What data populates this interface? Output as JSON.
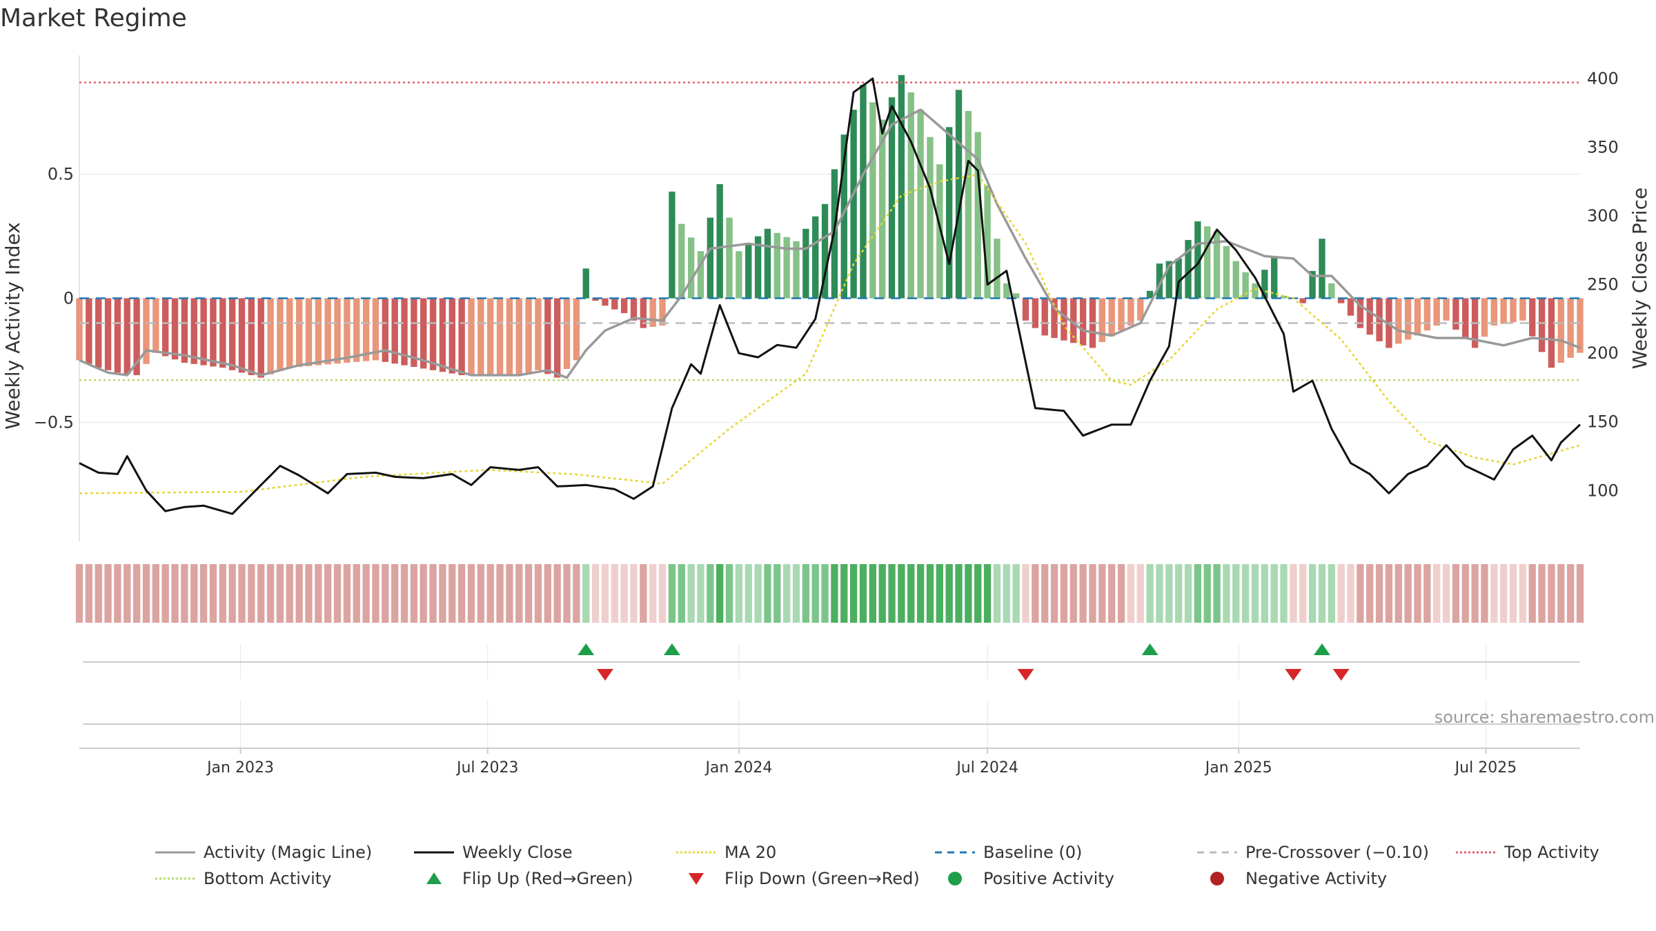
{
  "title": "Market Regime",
  "source": "source: sharemaestro.com",
  "colors": {
    "bar_green_strong": "#2e8b57",
    "bar_green_light": "#86c187",
    "bar_red_strong": "#cd5c5c",
    "bar_red_light": "#e9967a",
    "magic_line": "#999999",
    "close_line": "#111111",
    "ma20": "#e8d534",
    "baseline": "#1f77b4",
    "pre_crossover": "#bbbbbb",
    "top_activity": "#e06070",
    "bottom_activity": "#b8d86b",
    "flip_up": "#1e9e4a",
    "flip_down": "#d62728",
    "positive": "#1e9e4a",
    "negative": "#b22222",
    "ribbon_green_dark": "#4caf60",
    "ribbon_green_mid": "#7cc58a",
    "ribbon_green_light": "#a9d9b2",
    "ribbon_red_mid": "#dca4a1",
    "ribbon_red_light": "#efcfcd"
  },
  "chart_data": {
    "type": "bar",
    "title": "Market Regime",
    "ylabel_left": "Weekly Activity Index",
    "ylabel_right": "Weekly Close Price",
    "ylim_left": [
      -0.98,
      0.98
    ],
    "ylim_right": [
      63,
      417
    ],
    "yticks_left": [
      {
        "value": 0.5,
        "label": "0.5"
      },
      {
        "value": 0,
        "label": "0"
      },
      {
        "value": -0.5,
        "label": "−0.5"
      }
    ],
    "yticks_right": [
      {
        "value": 400,
        "label": "400"
      },
      {
        "value": 350,
        "label": "350"
      },
      {
        "value": 300,
        "label": "300"
      },
      {
        "value": 250,
        "label": "250"
      },
      {
        "value": 200,
        "label": "200"
      },
      {
        "value": 150,
        "label": "150"
      },
      {
        "value": 100,
        "label": "100"
      }
    ],
    "x_start": "2022-09-05",
    "x_end": "2025-09-08",
    "xticks": [
      {
        "date": "2023-01-01",
        "label": "Jan 2023"
      },
      {
        "date": "2023-07-01",
        "label": "Jul 2023"
      },
      {
        "date": "2024-01-01",
        "label": "Jan 2024"
      },
      {
        "date": "2024-07-01",
        "label": "Jul 2024"
      },
      {
        "date": "2025-01-01",
        "label": "Jan 2025"
      },
      {
        "date": "2025-07-01",
        "label": "Jul 2025"
      }
    ],
    "reference_lines": {
      "baseline": 0,
      "pre_crossover": -0.1,
      "top_activity": 0.87,
      "bottom_activity": -0.33
    },
    "activity_keypoints": [
      [
        "2022-09-05",
        -0.25
      ],
      [
        "2022-09-19",
        -0.28
      ],
      [
        "2022-10-03",
        -0.3
      ],
      [
        "2022-10-17",
        -0.31
      ],
      [
        "2022-10-31",
        -0.22
      ],
      [
        "2022-11-21",
        -0.26
      ],
      [
        "2022-12-19",
        -0.28
      ],
      [
        "2023-01-16",
        -0.32
      ],
      [
        "2023-02-06",
        -0.28
      ],
      [
        "2023-02-27",
        -0.27
      ],
      [
        "2023-03-20",
        -0.26
      ],
      [
        "2023-04-10",
        -0.25
      ],
      [
        "2023-05-01",
        -0.27
      ],
      [
        "2023-05-22",
        -0.29
      ],
      [
        "2023-06-12",
        -0.31
      ],
      [
        "2023-07-03",
        -0.31
      ],
      [
        "2023-07-24",
        -0.31
      ],
      [
        "2023-08-07",
        -0.29
      ],
      [
        "2023-08-21",
        -0.32
      ],
      [
        "2023-09-04",
        -0.25
      ],
      [
        "2023-09-11",
        0.12
      ],
      [
        "2023-09-18",
        -0.01
      ],
      [
        "2023-09-25",
        -0.03
      ],
      [
        "2023-10-09",
        -0.06
      ],
      [
        "2023-10-23",
        -0.12
      ],
      [
        "2023-11-06",
        -0.11
      ],
      [
        "2023-11-13",
        0.43
      ],
      [
        "2023-11-20",
        0.3
      ],
      [
        "2023-12-04",
        0.19
      ],
      [
        "2023-12-18",
        0.46
      ],
      [
        "2024-01-01",
        0.19
      ],
      [
        "2024-01-22",
        0.28
      ],
      [
        "2024-02-12",
        0.23
      ],
      [
        "2024-03-04",
        0.38
      ],
      [
        "2024-03-18",
        0.66
      ],
      [
        "2024-04-01",
        0.86
      ],
      [
        "2024-04-15",
        0.72
      ],
      [
        "2024-04-29",
        0.9
      ],
      [
        "2024-05-13",
        0.76
      ],
      [
        "2024-05-27",
        0.54
      ],
      [
        "2024-06-10",
        0.84
      ],
      [
        "2024-06-24",
        0.67
      ],
      [
        "2024-07-08",
        0.24
      ],
      [
        "2024-07-15",
        0.06
      ],
      [
        "2024-07-22",
        0.02
      ],
      [
        "2024-07-29",
        -0.09
      ],
      [
        "2024-08-12",
        -0.15
      ],
      [
        "2024-08-26",
        -0.17
      ],
      [
        "2024-09-16",
        -0.2
      ],
      [
        "2024-10-07",
        -0.13
      ],
      [
        "2024-10-21",
        -0.09
      ],
      [
        "2024-10-28",
        0.03
      ],
      [
        "2024-11-04",
        0.14
      ],
      [
        "2024-11-18",
        0.16
      ],
      [
        "2024-12-02",
        0.31
      ],
      [
        "2024-12-16",
        0.27
      ],
      [
        "2024-12-30",
        0.15
      ],
      [
        "2025-01-13",
        0.06
      ],
      [
        "2025-01-27",
        0.17
      ],
      [
        "2025-02-03",
        0.01
      ],
      [
        "2025-02-17",
        -0.02
      ],
      [
        "2025-03-03",
        0.24
      ],
      [
        "2025-03-10",
        0.06
      ],
      [
        "2025-03-17",
        -0.02
      ],
      [
        "2025-03-31",
        -0.12
      ],
      [
        "2025-04-21",
        -0.2
      ],
      [
        "2025-05-12",
        -0.15
      ],
      [
        "2025-06-02",
        -0.09
      ],
      [
        "2025-06-23",
        -0.2
      ],
      [
        "2025-07-07",
        -0.11
      ],
      [
        "2025-07-28",
        -0.09
      ],
      [
        "2025-08-18",
        -0.28
      ],
      [
        "2025-09-08",
        -0.22
      ]
    ],
    "magic_line_keypoints": [
      [
        "2022-09-05",
        -0.25
      ],
      [
        "2022-09-26",
        -0.3
      ],
      [
        "2022-10-10",
        -0.31
      ],
      [
        "2022-10-24",
        -0.21
      ],
      [
        "2022-11-21",
        -0.23
      ],
      [
        "2022-12-26",
        -0.27
      ],
      [
        "2023-01-16",
        -0.31
      ],
      [
        "2023-02-13",
        -0.27
      ],
      [
        "2023-03-20",
        -0.24
      ],
      [
        "2023-04-17",
        -0.21
      ],
      [
        "2023-05-15",
        -0.25
      ],
      [
        "2023-06-19",
        -0.31
      ],
      [
        "2023-07-24",
        -0.31
      ],
      [
        "2023-08-14",
        -0.29
      ],
      [
        "2023-08-28",
        -0.32
      ],
      [
        "2023-09-11",
        -0.21
      ],
      [
        "2023-09-25",
        -0.13
      ],
      [
        "2023-10-16",
        -0.08
      ],
      [
        "2023-11-06",
        -0.09
      ],
      [
        "2023-11-20",
        0.01
      ],
      [
        "2023-12-11",
        0.2
      ],
      [
        "2024-01-08",
        0.22
      ],
      [
        "2024-02-05",
        0.2
      ],
      [
        "2024-02-19",
        0.2
      ],
      [
        "2024-03-11",
        0.27
      ],
      [
        "2024-04-01",
        0.5
      ],
      [
        "2024-04-22",
        0.7
      ],
      [
        "2024-05-13",
        0.76
      ],
      [
        "2024-06-03",
        0.66
      ],
      [
        "2024-06-24",
        0.56
      ],
      [
        "2024-07-08",
        0.38
      ],
      [
        "2024-07-29",
        0.16
      ],
      [
        "2024-08-19",
        -0.04
      ],
      [
        "2024-09-09",
        -0.13
      ],
      [
        "2024-09-30",
        -0.15
      ],
      [
        "2024-10-21",
        -0.1
      ],
      [
        "2024-11-11",
        0.13
      ],
      [
        "2024-12-02",
        0.22
      ],
      [
        "2024-12-23",
        0.23
      ],
      [
        "2025-01-20",
        0.17
      ],
      [
        "2025-02-10",
        0.16
      ],
      [
        "2025-02-24",
        0.09
      ],
      [
        "2025-03-10",
        0.09
      ],
      [
        "2025-03-31",
        -0.03
      ],
      [
        "2025-04-28",
        -0.13
      ],
      [
        "2025-05-26",
        -0.16
      ],
      [
        "2025-06-16",
        -0.16
      ],
      [
        "2025-07-14",
        -0.19
      ],
      [
        "2025-08-04",
        -0.16
      ],
      [
        "2025-08-25",
        -0.17
      ],
      [
        "2025-09-08",
        -0.2
      ]
    ],
    "close_keypoints": [
      [
        "2022-09-05",
        120
      ],
      [
        "2022-09-19",
        113
      ],
      [
        "2022-10-03",
        112
      ],
      [
        "2022-10-10",
        125
      ],
      [
        "2022-10-24",
        100
      ],
      [
        "2022-11-07",
        85
      ],
      [
        "2022-11-21",
        88
      ],
      [
        "2022-12-05",
        89
      ],
      [
        "2022-12-26",
        83
      ],
      [
        "2023-01-16",
        104
      ],
      [
        "2023-01-30",
        118
      ],
      [
        "2023-02-13",
        111
      ],
      [
        "2023-03-06",
        98
      ],
      [
        "2023-03-20",
        112
      ],
      [
        "2023-04-10",
        113
      ],
      [
        "2023-04-24",
        110
      ],
      [
        "2023-05-15",
        109
      ],
      [
        "2023-06-05",
        112
      ],
      [
        "2023-06-19",
        104
      ],
      [
        "2023-07-03",
        117
      ],
      [
        "2023-07-24",
        115
      ],
      [
        "2023-08-07",
        117
      ],
      [
        "2023-08-21",
        103
      ],
      [
        "2023-09-11",
        104
      ],
      [
        "2023-10-02",
        101
      ],
      [
        "2023-10-16",
        94
      ],
      [
        "2023-10-30",
        103
      ],
      [
        "2023-11-13",
        160
      ],
      [
        "2023-11-27",
        192
      ],
      [
        "2023-12-04",
        185
      ],
      [
        "2023-12-18",
        235
      ],
      [
        "2024-01-01",
        200
      ],
      [
        "2024-01-15",
        197
      ],
      [
        "2024-01-29",
        206
      ],
      [
        "2024-02-12",
        204
      ],
      [
        "2024-02-26",
        225
      ],
      [
        "2024-03-11",
        290
      ],
      [
        "2024-03-25",
        390
      ],
      [
        "2024-04-08",
        400
      ],
      [
        "2024-04-15",
        360
      ],
      [
        "2024-04-22",
        380
      ],
      [
        "2024-05-06",
        354
      ],
      [
        "2024-05-20",
        320
      ],
      [
        "2024-06-03",
        265
      ],
      [
        "2024-06-17",
        340
      ],
      [
        "2024-06-24",
        333
      ],
      [
        "2024-07-01",
        250
      ],
      [
        "2024-07-15",
        260
      ],
      [
        "2024-08-05",
        160
      ],
      [
        "2024-08-26",
        158
      ],
      [
        "2024-09-09",
        140
      ],
      [
        "2024-09-30",
        148
      ],
      [
        "2024-10-14",
        148
      ],
      [
        "2024-10-28",
        180
      ],
      [
        "2024-11-11",
        205
      ],
      [
        "2024-11-18",
        252
      ],
      [
        "2024-12-02",
        265
      ],
      [
        "2024-12-16",
        290
      ],
      [
        "2024-12-30",
        275
      ],
      [
        "2025-01-13",
        255
      ],
      [
        "2025-02-03",
        214
      ],
      [
        "2025-02-10",
        172
      ],
      [
        "2025-02-24",
        180
      ],
      [
        "2025-03-10",
        145
      ],
      [
        "2025-03-24",
        120
      ],
      [
        "2025-04-07",
        112
      ],
      [
        "2025-04-21",
        98
      ],
      [
        "2025-05-05",
        112
      ],
      [
        "2025-05-19",
        118
      ],
      [
        "2025-06-02",
        133
      ],
      [
        "2025-06-16",
        118
      ],
      [
        "2025-07-07",
        108
      ],
      [
        "2025-07-21",
        130
      ],
      [
        "2025-08-04",
        140
      ],
      [
        "2025-08-18",
        122
      ],
      [
        "2025-08-25",
        135
      ],
      [
        "2025-09-08",
        148
      ]
    ],
    "ma20_keypoints": [
      [
        "2022-09-05",
        98
      ],
      [
        "2023-01-01",
        99
      ],
      [
        "2023-04-01",
        110
      ],
      [
        "2023-07-01",
        115
      ],
      [
        "2023-09-01",
        112
      ],
      [
        "2023-11-06",
        105
      ],
      [
        "2023-12-25",
        145
      ],
      [
        "2024-02-19",
        185
      ],
      [
        "2024-03-25",
        265
      ],
      [
        "2024-04-29",
        315
      ],
      [
        "2024-05-27",
        325
      ],
      [
        "2024-06-24",
        330
      ],
      [
        "2024-07-29",
        280
      ],
      [
        "2024-08-26",
        220
      ],
      [
        "2024-09-30",
        180
      ],
      [
        "2024-10-14",
        177
      ],
      [
        "2024-11-11",
        195
      ],
      [
        "2024-12-16",
        232
      ],
      [
        "2025-01-13",
        247
      ],
      [
        "2025-02-10",
        240
      ],
      [
        "2025-03-17",
        210
      ],
      [
        "2025-04-21",
        165
      ],
      [
        "2025-05-19",
        136
      ],
      [
        "2025-06-23",
        124
      ],
      [
        "2025-07-21",
        119
      ],
      [
        "2025-09-08",
        133
      ]
    ],
    "flips": {
      "up": [
        "2023-09-11",
        "2023-11-13",
        "2024-10-28",
        "2025-03-03"
      ],
      "down": [
        "2023-09-25",
        "2024-07-29",
        "2025-02-10",
        "2025-03-17"
      ]
    },
    "legend": [
      {
        "label": "Activity (Magic Line)",
        "kind": "line",
        "color": "#999999",
        "dash": ""
      },
      {
        "label": "Weekly Close",
        "kind": "line",
        "color": "#111111",
        "dash": ""
      },
      {
        "label": "MA 20",
        "kind": "line",
        "color": "#e8d534",
        "dash": "3,3"
      },
      {
        "label": "Baseline (0)",
        "kind": "line",
        "color": "#1f77b4",
        "dash": "10,8"
      },
      {
        "label": "Pre-Crossover (−0.10)",
        "kind": "line",
        "color": "#bbbbbb",
        "dash": "10,8"
      },
      {
        "label": "Top Activity",
        "kind": "line",
        "color": "#e06070",
        "dash": "3,3"
      },
      {
        "label": "Bottom Activity",
        "kind": "line",
        "color": "#b8d86b",
        "dash": "3,3"
      },
      {
        "label": "Flip Up (Red→Green)",
        "kind": "triangle-up",
        "color": "#1e9e4a",
        "dash": ""
      },
      {
        "label": "Flip Down (Green→Red)",
        "kind": "triangle-down",
        "color": "#d62728",
        "dash": ""
      },
      {
        "label": "Positive Activity",
        "kind": "dot",
        "color": "#1e9e4a",
        "dash": ""
      },
      {
        "label": "Negative Activity",
        "kind": "dot",
        "color": "#b22222",
        "dash": ""
      }
    ]
  }
}
